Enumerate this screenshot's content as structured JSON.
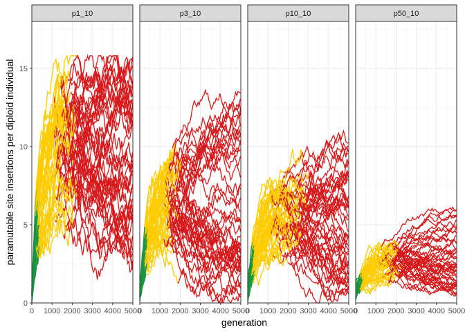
{
  "chart_data": {
    "type": "line",
    "facets": [
      {
        "label": "p1_10",
        "peak_yellow_gen": 1400,
        "peak_yellow_val": 17.0,
        "red_top_val": 15.5,
        "red_bottom_val": 2.0
      },
      {
        "label": "p3_10",
        "peak_yellow_gen": 1200,
        "peak_yellow_val": 11.0,
        "red_top_val": 14.5,
        "red_bottom_val": 0.5
      },
      {
        "label": "p10_10",
        "peak_yellow_gen": 2200,
        "peak_yellow_val": 9.7,
        "red_top_val": 10.7,
        "red_bottom_val": 0.2
      },
      {
        "label": "p50_10",
        "peak_yellow_gen": 1500,
        "peak_yellow_val": 4.3,
        "red_top_val": 6.0,
        "red_bottom_val": 0.2
      }
    ],
    "xlabel": "generation",
    "ylabel": "paramutable site insertions per diploid individual",
    "xlim": [
      0,
      5000
    ],
    "ylim": [
      0,
      18
    ],
    "x_ticks": [
      0,
      1000,
      2000,
      3000,
      4000,
      5000
    ],
    "y_ticks": [
      0,
      5,
      10,
      15
    ],
    "x_tick_labels": [
      "0",
      "1000",
      "2000",
      "3000",
      "4000",
      "5000"
    ],
    "y_tick_labels": [
      "0",
      "5",
      "10",
      "15"
    ],
    "phase_colors": {
      "early": "#1a9641",
      "middle": "#ffcc00",
      "late": "#d7191c"
    },
    "grid": true
  }
}
